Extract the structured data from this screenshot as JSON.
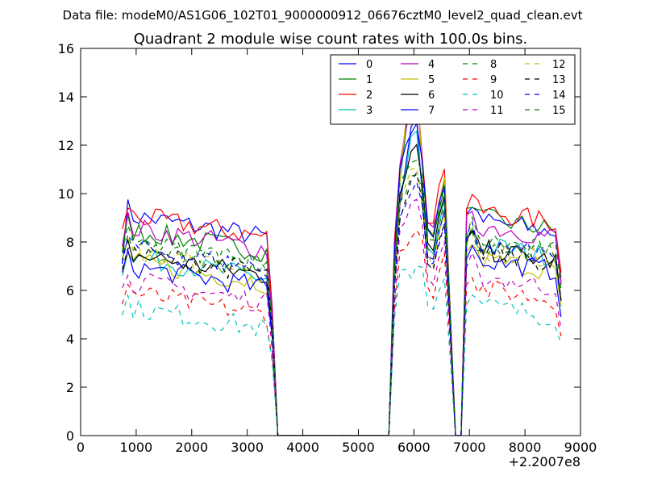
{
  "chart_data": {
    "type": "line",
    "suptitle": "Data file: modeM0/AS1G06_102T01_9000000912_06676cztM0_level2_quad_clean.evt",
    "title": "Quadrant 2 module wise count rates with 100.0s bins.",
    "xlabel": "",
    "ylabel": "",
    "x_offset_label": "+2.2007e8",
    "xlim": [
      0,
      9000
    ],
    "ylim": [
      0,
      16
    ],
    "x_ticks": [
      "0",
      "1000",
      "2000",
      "3000",
      "4000",
      "5000",
      "6000",
      "7000",
      "8000",
      "9000"
    ],
    "y_ticks": [
      "0",
      "2",
      "4",
      "6",
      "8",
      "10",
      "12",
      "14",
      "16"
    ],
    "grid": false,
    "legend": {
      "position": "top-right",
      "columns": 4
    },
    "series": [
      {
        "name": "0",
        "color": "#0000ff",
        "dash": "solid",
        "base": 8.7,
        "peak": 13.0,
        "b2": 9.4,
        "a3": 8.5,
        "e1": 7.4
      },
      {
        "name": "1",
        "color": "#008000",
        "dash": "solid",
        "base": 8.1,
        "peak": 14.4,
        "b2": 10.5,
        "a3": 8.6,
        "e1": 7.4
      },
      {
        "name": "2",
        "color": "#ff0000",
        "dash": "solid",
        "base": 8.7,
        "peak": 14.6,
        "b2": 11.2,
        "a3": 8.9,
        "e1": 8.4
      },
      {
        "name": "3",
        "color": "#00bfbf",
        "dash": "solid",
        "base": 7.0,
        "peak": 12.5,
        "b2": 9.6,
        "a3": 7.5,
        "e1": 6.8
      },
      {
        "name": "4",
        "color": "#bf00bf",
        "dash": "solid",
        "base": 8.2,
        "peak": 14.6,
        "b2": 10.8,
        "a3": 8.3,
        "e1": 7.7
      },
      {
        "name": "5",
        "color": "#bfbf00",
        "dash": "solid",
        "base": 6.8,
        "peak": 14.8,
        "b2": 10.5,
        "a3": 6.9,
        "e1": 6.6
      },
      {
        "name": "6",
        "color": "#000000",
        "dash": "solid",
        "base": 7.1,
        "peak": 12.0,
        "b2": 9.8,
        "a3": 7.3,
        "e1": 7.1
      },
      {
        "name": "7",
        "color": "#0000ff",
        "dash": "solid",
        "base": 6.6,
        "peak": 12.8,
        "b2": 10.6,
        "a3": 6.9,
        "e1": 6.7
      },
      {
        "name": "8",
        "color": "#008000",
        "dash": "dashed",
        "base": 7.5,
        "peak": 10.9,
        "b2": 9.5,
        "a3": 7.6,
        "e1": 7.0
      },
      {
        "name": "9",
        "color": "#ff0000",
        "dash": "dashed",
        "base": 5.5,
        "peak": 8.5,
        "b2": 7.5,
        "a3": 5.7,
        "e1": 5.4
      },
      {
        "name": "10",
        "color": "#00bfbf",
        "dash": "dashed",
        "base": 4.9,
        "peak": 7.0,
        "b2": 6.7,
        "a3": 5.0,
        "e1": 4.9
      },
      {
        "name": "11",
        "color": "#bf00bf",
        "dash": "dashed",
        "base": 6.0,
        "peak": 9.9,
        "b2": 8.1,
        "a3": 6.2,
        "e1": 6.0
      },
      {
        "name": "12",
        "color": "#bfbf00",
        "dash": "dashed",
        "base": 7.2,
        "peak": 11.2,
        "b2": 9.2,
        "a3": 7.3,
        "e1": 7.1
      },
      {
        "name": "13",
        "color": "#000000",
        "dash": "dashed",
        "base": 7.2,
        "peak": 10.8,
        "b2": 9.0,
        "a3": 7.2,
        "e1": 7.0
      },
      {
        "name": "14",
        "color": "#0000ff",
        "dash": "dashed",
        "base": 7.4,
        "peak": 10.5,
        "b2": 8.9,
        "a3": 7.5,
        "e1": 7.2
      },
      {
        "name": "15",
        "color": "#008000",
        "dash": "dashed",
        "base": 7.6,
        "peak": 11.5,
        "b2": 10.2,
        "a3": 7.7,
        "e1": 7.4
      }
    ]
  }
}
